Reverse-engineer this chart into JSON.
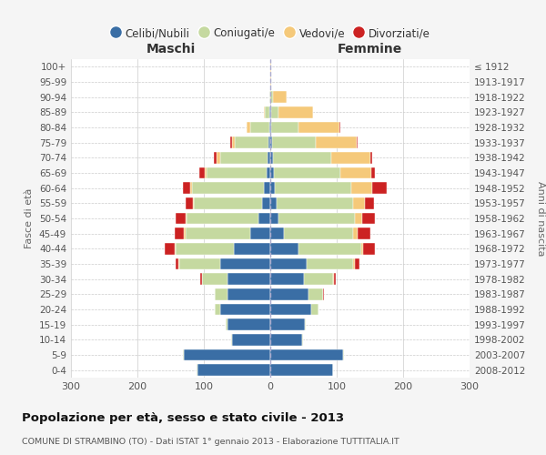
{
  "age_groups": [
    "100+",
    "95-99",
    "90-94",
    "85-89",
    "80-84",
    "75-79",
    "70-74",
    "65-69",
    "60-64",
    "55-59",
    "50-54",
    "45-49",
    "40-44",
    "35-39",
    "30-34",
    "25-29",
    "20-24",
    "15-19",
    "10-14",
    "5-9",
    "0-4"
  ],
  "birth_years": [
    "≤ 1912",
    "1913-1917",
    "1918-1922",
    "1923-1927",
    "1928-1932",
    "1933-1937",
    "1938-1942",
    "1943-1947",
    "1948-1952",
    "1953-1957",
    "1958-1962",
    "1963-1967",
    "1968-1972",
    "1973-1977",
    "1978-1982",
    "1983-1987",
    "1988-1992",
    "1993-1997",
    "1998-2002",
    "2003-2007",
    "2008-2012"
  ],
  "colors": {
    "celibe": "#3a6ea5",
    "coniugato": "#c5d9a0",
    "vedovo": "#f5c97a",
    "divorziato": "#cc2222"
  },
  "maschi": {
    "celibe": [
      0,
      0,
      0,
      1,
      2,
      3,
      4,
      6,
      10,
      12,
      18,
      30,
      55,
      75,
      65,
      65,
      75,
      65,
      58,
      130,
      110
    ],
    "coniugato": [
      0,
      0,
      1,
      7,
      28,
      50,
      72,
      90,
      108,
      103,
      108,
      98,
      88,
      62,
      38,
      18,
      8,
      2,
      1,
      1,
      1
    ],
    "vedovo": [
      0,
      0,
      0,
      2,
      5,
      5,
      5,
      3,
      2,
      2,
      2,
      2,
      1,
      1,
      0,
      0,
      0,
      0,
      0,
      0,
      0
    ],
    "divorziato": [
      0,
      0,
      0,
      0,
      0,
      2,
      4,
      8,
      12,
      10,
      14,
      14,
      15,
      5,
      3,
      1,
      0,
      0,
      0,
      0,
      0
    ]
  },
  "femmine": {
    "celibe": [
      0,
      0,
      0,
      1,
      2,
      3,
      4,
      5,
      7,
      9,
      12,
      20,
      42,
      55,
      50,
      58,
      62,
      52,
      48,
      110,
      95
    ],
    "coniugato": [
      0,
      0,
      4,
      12,
      40,
      65,
      88,
      100,
      115,
      115,
      115,
      105,
      95,
      70,
      45,
      22,
      10,
      2,
      1,
      1,
      0
    ],
    "vedovo": [
      1,
      2,
      20,
      52,
      62,
      62,
      58,
      47,
      32,
      18,
      12,
      7,
      3,
      2,
      1,
      0,
      0,
      0,
      0,
      0,
      0
    ],
    "divorziato": [
      0,
      0,
      0,
      0,
      2,
      2,
      4,
      6,
      22,
      14,
      18,
      18,
      18,
      7,
      3,
      1,
      0,
      0,
      0,
      0,
      0
    ]
  },
  "xlim": 300,
  "title": "Popolazione per età, sesso e stato civile - 2013",
  "subtitle": "COMUNE DI STRAMBINO (TO) - Dati ISTAT 1° gennaio 2013 - Elaborazione TUTTITALIA.IT",
  "xlabel_maschi": "Maschi",
  "xlabel_femmine": "Femmine",
  "ylabel": "Fasce di età",
  "ylabel_right": "Anni di nascita",
  "legend_labels": [
    "Celibi/Nubili",
    "Coniugati/e",
    "Vedovi/e",
    "Divorziati/e"
  ],
  "background_color": "#f5f5f5",
  "plot_bg_color": "#ffffff"
}
